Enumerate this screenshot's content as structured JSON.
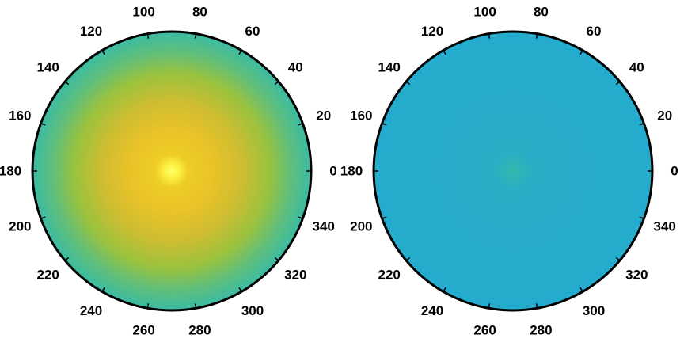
{
  "chart_data": [
    {
      "type": "heatmap",
      "projection": "polar",
      "angle_tick_labels": [
        "0",
        "20",
        "40",
        "60",
        "80",
        "100",
        "120",
        "140",
        "160",
        "180",
        "200",
        "220",
        "240",
        "260",
        "280",
        "300",
        "320",
        "340"
      ],
      "angle_ticks_deg": [
        0,
        20,
        40,
        60,
        80,
        100,
        120,
        140,
        160,
        180,
        200,
        220,
        240,
        260,
        280,
        300,
        320,
        340
      ],
      "angle_direction": "counterclockwise",
      "zero_angle_at": "right",
      "radial_profile": {
        "r": [
          0,
          0.05,
          0.12,
          0.3,
          0.5,
          0.7,
          0.85,
          1.0
        ],
        "intensity": [
          1.0,
          0.92,
          0.74,
          0.7,
          0.62,
          0.5,
          0.4,
          0.32
        ]
      },
      "peak": "bright spot at center",
      "colormap": "parula",
      "colormap_stops": [
        "#3a7de0",
        "#21a8d4",
        "#3cbda0",
        "#9ac23e",
        "#e4bb2c",
        "#fbe31c",
        "#ffff66"
      ],
      "grid": false,
      "colorbar": false,
      "title": "",
      "xlabel": "",
      "ylabel": ""
    },
    {
      "type": "heatmap",
      "projection": "polar",
      "angle_tick_labels": [
        "0",
        "20",
        "40",
        "60",
        "80",
        "100",
        "120",
        "140",
        "160",
        "180",
        "200",
        "220",
        "240",
        "260",
        "280",
        "300",
        "320",
        "340"
      ],
      "angle_ticks_deg": [
        0,
        20,
        40,
        60,
        80,
        100,
        120,
        140,
        160,
        180,
        200,
        220,
        240,
        260,
        280,
        300,
        320,
        340
      ],
      "angle_direction": "counterclockwise",
      "zero_angle_at": "right",
      "radial_profile": {
        "r": [
          0,
          0.05,
          0.15,
          0.5,
          1.0
        ],
        "intensity": [
          0.3,
          0.26,
          0.21,
          0.2,
          0.19
        ]
      },
      "peak": "faint spot at center",
      "colormap": "parula",
      "colormap_stops": [
        "#3a7de0",
        "#21a8d4",
        "#3cbda0",
        "#9ac23e",
        "#e4bb2c",
        "#fbe31c",
        "#ffff66"
      ],
      "grid": false,
      "colorbar": false,
      "title": "",
      "xlabel": "",
      "ylabel": ""
    }
  ]
}
